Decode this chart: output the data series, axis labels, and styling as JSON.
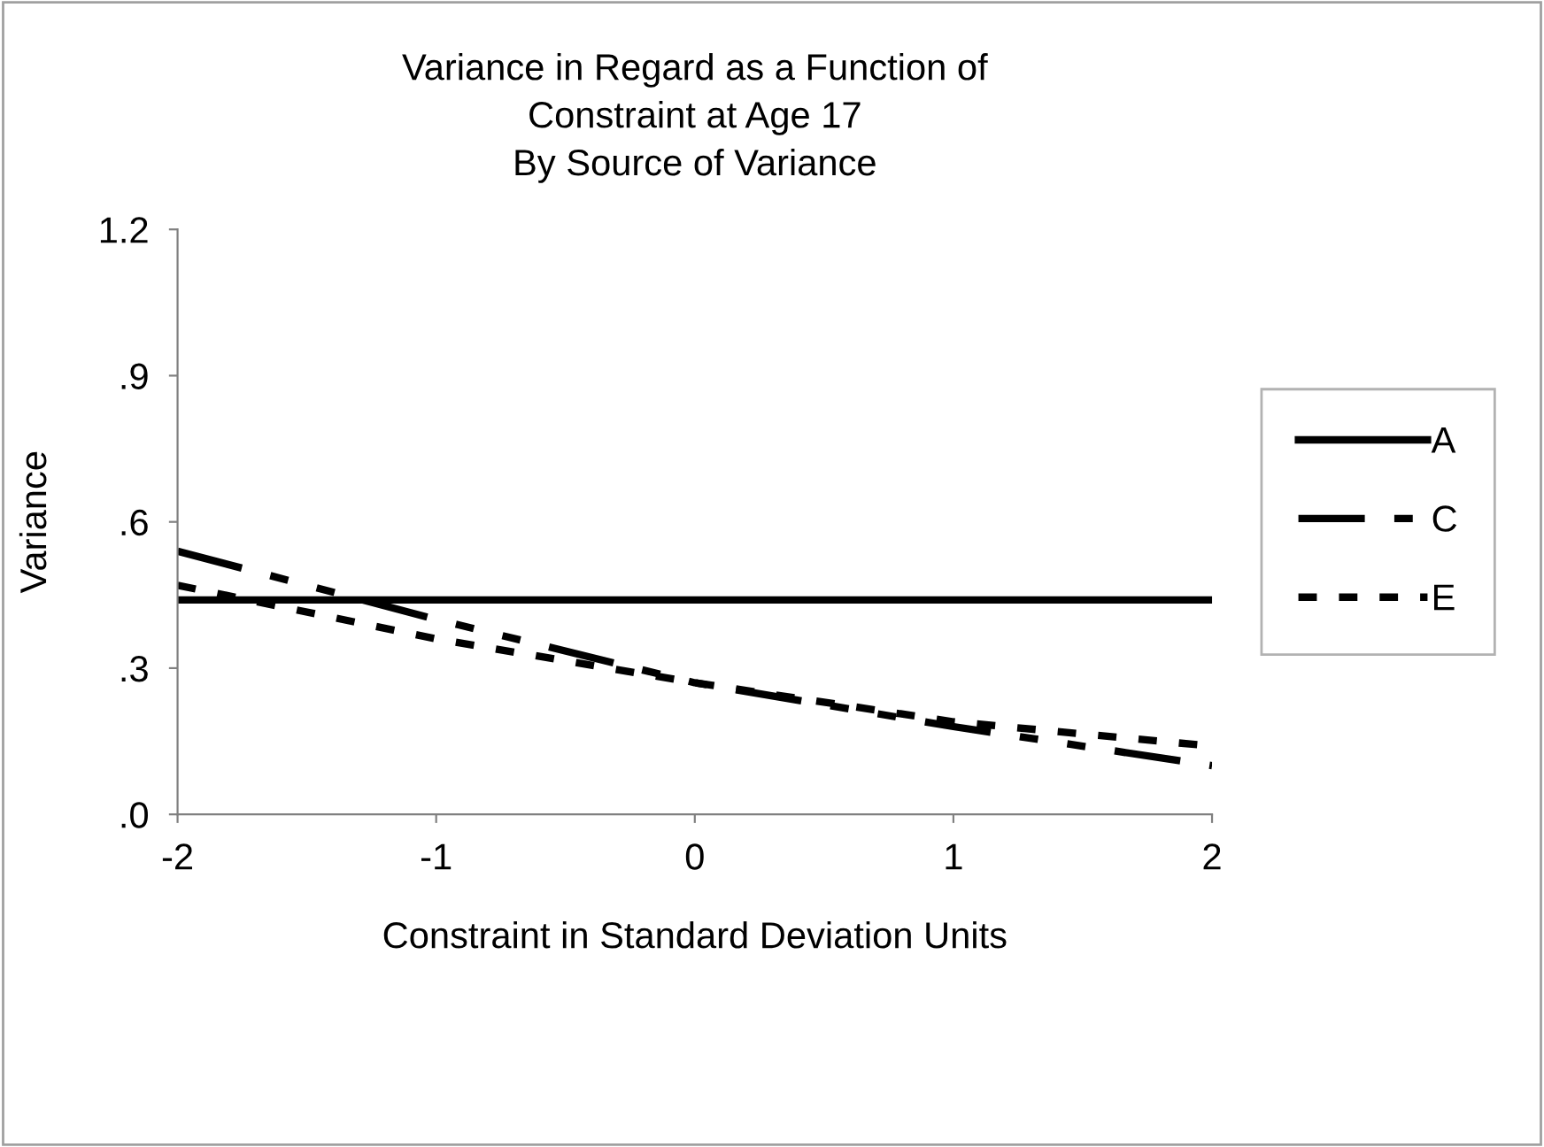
{
  "chart_data": {
    "type": "line",
    "title": "Variance in Regard as a Function of\nConstraint at Age 17\nBy Source of Variance",
    "xlabel": "Constraint in Standard Deviation Units",
    "ylabel": "Variance",
    "x": [
      -2,
      -1,
      0,
      1,
      2
    ],
    "series": [
      {
        "name": "A",
        "color": "#000000",
        "line_style": "solid",
        "values": [
          0.44,
          0.44,
          0.44,
          0.44,
          0.44
        ]
      },
      {
        "name": "C",
        "color": "#000000",
        "line_style": "dashed",
        "values": [
          0.54,
          0.4,
          0.27,
          0.18,
          0.1
        ]
      },
      {
        "name": "E",
        "color": "#000000",
        "line_style": "dotted",
        "values": [
          0.47,
          0.36,
          0.27,
          0.19,
          0.14
        ]
      }
    ],
    "xlim": [
      -2,
      2
    ],
    "xticks": [
      -2,
      -1,
      0,
      1,
      2
    ],
    "ylim": [
      0,
      1.2
    ],
    "yticks": [
      {
        "value": 0,
        "label": ".0"
      },
      {
        "value": 0.3,
        "label": ".3"
      },
      {
        "value": 0.6,
        "label": ".6"
      },
      {
        "value": 0.9,
        "label": ".9"
      },
      {
        "value": 1.2,
        "label": "1.2"
      }
    ],
    "grid": false,
    "legend": "right",
    "marker": "none"
  }
}
